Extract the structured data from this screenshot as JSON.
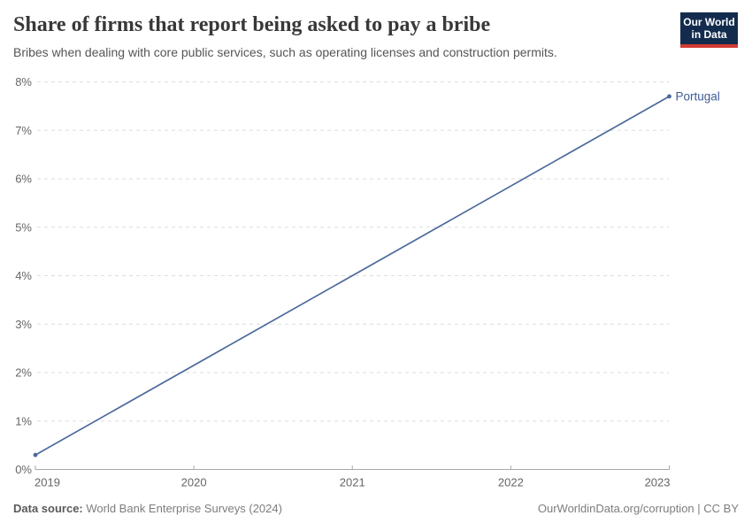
{
  "header": {
    "logo": {
      "line1": "Our World",
      "line2": "in Data",
      "bg_color": "#132c4e",
      "accent_color": "#d13b33"
    }
  },
  "chart_data": {
    "type": "line",
    "title": "Share of firms that report being asked to pay a bribe",
    "subtitle": "Bribes when dealing with core public services, such as operating licenses and construction permits.",
    "series": [
      {
        "name": "Portugal",
        "x": [
          2019,
          2023
        ],
        "values": [
          0.3,
          7.7
        ],
        "color": "#4C6A9C",
        "label_color": "#3D5A96"
      }
    ],
    "xlabel": "",
    "ylabel": "",
    "xlim": [
      2019,
      2023
    ],
    "ylim": [
      0,
      8
    ],
    "xticks": [
      2019,
      2020,
      2021,
      2022,
      2023
    ],
    "yticks": [
      0,
      1,
      2,
      3,
      4,
      5,
      6,
      7,
      8
    ],
    "ytick_suffix": "%",
    "grid": "horizontal-dashed",
    "legend_position": "line-end-label",
    "axis_color": "#a7a7a7",
    "grid_color": "#dddddd",
    "tick_label_color": "#666666"
  },
  "footer": {
    "source_label": "Data source:",
    "source_value": " World Bank Enterprise Surveys (2024)",
    "attribution": "OurWorldinData.org/corruption | CC BY"
  }
}
